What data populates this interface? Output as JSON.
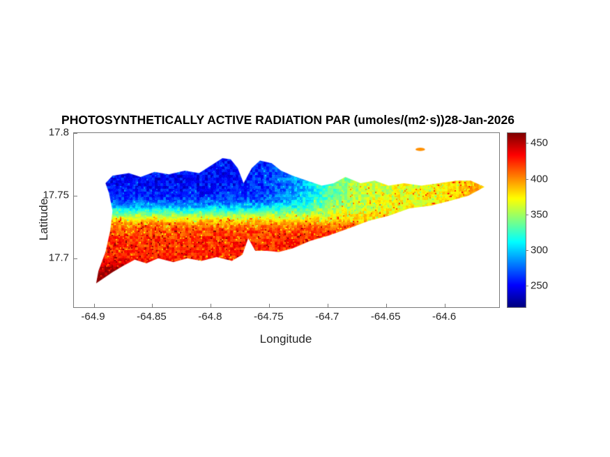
{
  "figure": {
    "background": "#ffffff"
  },
  "chart_data": {
    "type": "heatmap",
    "title": "PHOTOSYNTHETICALLY ACTIVE RADIATION PAR (umoles/(m2·s))28-Jan-2026",
    "xlabel": "Longitude",
    "ylabel": "Latitude",
    "units": "umoles/(m2·s)",
    "date": "28-Jan-2026",
    "xlim": [
      -64.917,
      -64.5536
    ],
    "ylim": [
      17.661,
      17.8
    ],
    "x_ticks": [
      -64.9,
      -64.85,
      -64.8,
      -64.75,
      -64.7,
      -64.65,
      -64.6
    ],
    "x_tick_labels": [
      "-64.9",
      "-64.85",
      "-64.8",
      "-64.75",
      "-64.7",
      "-64.65",
      "-64.6"
    ],
    "y_ticks": [
      17.8,
      17.75,
      17.7
    ],
    "y_tick_labels": [
      "17.8",
      "17.75",
      "17.7"
    ],
    "grid": false,
    "colormap": "jet",
    "colorbar": {
      "position": "right",
      "cmin": 221,
      "cmax": 465,
      "ticks": [
        450,
        400,
        350,
        300,
        250
      ],
      "tick_labels": [
        "450",
        "400",
        "350",
        "300",
        "250"
      ]
    },
    "region_values": {
      "north_coast_band_PAR": 260,
      "transition_band_PAR": 330,
      "central_band_PAR": 400,
      "south_coast_PAR": 430,
      "southwest_tip_PAR": 455,
      "east_half_north_PAR": 375,
      "east_tip_PAR": 395
    },
    "field_model": {
      "v_north": 250,
      "amp": 175,
      "lat_mid": 17.736,
      "lat_scale": 0.005,
      "south_boost": 45,
      "south_start": 17.702,
      "south_span": 0.022,
      "east_target": 382,
      "east_center": -64.71,
      "east_scale": 0.02,
      "east_blend": 0.92,
      "east_tip_start": -64.62,
      "east_tip_gain": 400,
      "west_boost_lon": -64.86,
      "west_boost_lat": 17.7,
      "west_boost": 8,
      "noise_coarse": 16,
      "noise_fine": 7,
      "clamp_min": 228,
      "clamp_max": 462
    },
    "island_outline": [
      [
        -64.89,
        17.76
      ],
      [
        -64.884,
        17.766
      ],
      [
        -64.87,
        17.768
      ],
      [
        -64.86,
        17.765
      ],
      [
        -64.848,
        17.769
      ],
      [
        -64.836,
        17.767
      ],
      [
        -64.822,
        17.77
      ],
      [
        -64.81,
        17.768
      ],
      [
        -64.8,
        17.774
      ],
      [
        -64.79,
        17.78
      ],
      [
        -64.783,
        17.779
      ],
      [
        -64.777,
        17.772
      ],
      [
        -64.772,
        17.76
      ],
      [
        -64.765,
        17.772
      ],
      [
        -64.758,
        17.778
      ],
      [
        -64.748,
        17.776
      ],
      [
        -64.74,
        17.77
      ],
      [
        -64.73,
        17.766
      ],
      [
        -64.718,
        17.762
      ],
      [
        -64.705,
        17.758
      ],
      [
        -64.695,
        17.76
      ],
      [
        -64.685,
        17.765
      ],
      [
        -64.672,
        17.76
      ],
      [
        -64.66,
        17.762
      ],
      [
        -64.648,
        17.758
      ],
      [
        -64.635,
        17.76
      ],
      [
        -64.62,
        17.758
      ],
      [
        -64.605,
        17.76
      ],
      [
        -64.59,
        17.762
      ],
      [
        -64.578,
        17.762
      ],
      [
        -64.566,
        17.757
      ],
      [
        -64.58,
        17.75
      ],
      [
        -64.595,
        17.746
      ],
      [
        -64.612,
        17.742
      ],
      [
        -64.63,
        17.74
      ],
      [
        -64.648,
        17.734
      ],
      [
        -64.665,
        17.73
      ],
      [
        -64.682,
        17.724
      ],
      [
        -64.7,
        17.718
      ],
      [
        -64.715,
        17.714
      ],
      [
        -64.73,
        17.708
      ],
      [
        -64.742,
        17.705
      ],
      [
        -64.752,
        17.706
      ],
      [
        -64.762,
        17.706
      ],
      [
        -64.768,
        17.716
      ],
      [
        -64.773,
        17.703
      ],
      [
        -64.782,
        17.698
      ],
      [
        -64.795,
        17.701
      ],
      [
        -64.808,
        17.698
      ],
      [
        -64.82,
        17.7
      ],
      [
        -64.832,
        17.697
      ],
      [
        -64.845,
        17.7
      ],
      [
        -64.855,
        17.696
      ],
      [
        -64.865,
        17.699
      ],
      [
        -64.875,
        17.694
      ],
      [
        -64.884,
        17.689
      ],
      [
        -64.898,
        17.68
      ],
      [
        -64.896,
        17.69
      ],
      [
        -64.89,
        17.705
      ],
      [
        -64.886,
        17.722
      ],
      [
        -64.884,
        17.738
      ],
      [
        -64.887,
        17.752
      ]
    ],
    "islet": {
      "lon": -64.621,
      "lat": 17.787,
      "rx": 0.004,
      "ry": 0.0013,
      "value": 400
    }
  },
  "layout_colors": {
    "axis_line": "#7a7a7a",
    "tick_text": "#262626",
    "title_text": "#000000"
  }
}
